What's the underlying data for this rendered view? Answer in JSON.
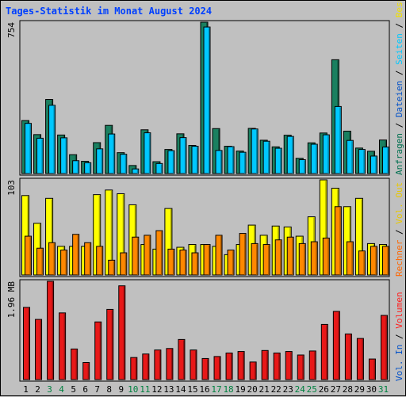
{
  "chart_data": {
    "type": "bar",
    "title": "Tages-Statistik im Monat August 2024",
    "categories": [
      "1",
      "2",
      "3",
      "4",
      "5",
      "6",
      "7",
      "8",
      "9",
      "10",
      "11",
      "12",
      "13",
      "14",
      "15",
      "16",
      "17",
      "18",
      "19",
      "20",
      "21",
      "22",
      "23",
      "24",
      "25",
      "26",
      "27",
      "28",
      "29",
      "30",
      "31"
    ],
    "weekend_days": [
      "3",
      "4",
      "10",
      "11",
      "17",
      "18",
      "24",
      "25",
      "31"
    ],
    "panels": [
      {
        "name": "requests",
        "max_label": "754",
        "ymax": 754,
        "right_labels": [
          {
            "text": "Anfragen",
            "color": "#007050"
          },
          {
            "text": " / ",
            "color": "#000000"
          },
          {
            "text": "Dateien",
            "color": "#0050c8"
          },
          {
            "text": " / ",
            "color": "#000000"
          },
          {
            "text": "Seiten",
            "color": "#00c8ff"
          },
          {
            "text": " / ",
            "color": "#000000"
          },
          {
            "text": "Besuche",
            "color": "#f0e000"
          }
        ],
        "series": [
          {
            "name": "Anfragen",
            "color": "#1a8060",
            "values": [
              264,
              194,
              369,
              192,
              94,
              61,
              154,
              240,
              104,
              40,
              218,
              59,
              120,
              198,
              140,
              754,
              224,
              136,
              112,
              225,
              166,
              133,
              191,
              76,
              153,
              202,
              567,
              211,
              127,
              111,
              167
            ]
          },
          {
            "name": "Dateien",
            "color": "#00c8ff",
            "values": [
              250,
              176,
              340,
              178,
              64,
              54,
              123,
              197,
              96,
              23,
              203,
              50,
              114,
              179,
              136,
              730,
              115,
              134,
              106,
              222,
              161,
              126,
              185,
              69,
              146,
              193,
              334,
              165,
              120,
              87,
              132
            ]
          }
        ]
      },
      {
        "name": "visits",
        "max_label": "103",
        "ymax": 103,
        "right_labels": [
          {
            "text": "Rechner",
            "color": "#ff6600"
          },
          {
            "text": " / ",
            "color": "#000000"
          },
          {
            "text": "Vol. Out",
            "color": "#e8c800"
          }
        ],
        "series": [
          {
            "name": "Besuche",
            "color": "#ffff00",
            "values": [
              86,
              56,
              83,
              31,
              31,
              31,
              87,
              92,
              88,
              76,
              33,
              28,
              72,
              30,
              33,
              33,
              31,
              22,
              33,
              54,
              43,
              53,
              52,
              42,
              63,
              103,
              94,
              74,
              83,
              34,
              33
            ]
          },
          {
            "name": "Rechner",
            "color": "#ff8800",
            "values": [
              42,
              29,
              35,
              27,
              44,
              35,
              31,
              16,
              24,
              41,
              43,
              48,
              28,
              27,
              24,
              33,
              43,
              27,
              45,
              34,
              33,
              38,
              41,
              34,
              36,
              40,
              74,
              36,
              26,
              31,
              31
            ]
          }
        ]
      },
      {
        "name": "volume",
        "max_label": "1.96 MB",
        "ymax": 1.96,
        "right_labels": [
          {
            "text": "Vol. In",
            "color": "#0050c8"
          },
          {
            "text": " / ",
            "color": "#000000"
          },
          {
            "text": "Volumen",
            "color": "#ff2020"
          }
        ],
        "series": [
          {
            "name": "Volumen",
            "color": "#e81818",
            "values": [
              1.44,
              1.2,
              1.96,
              1.33,
              0.61,
              0.34,
              1.15,
              1.4,
              1.87,
              0.44,
              0.51,
              0.59,
              0.62,
              0.8,
              0.59,
              0.42,
              0.46,
              0.53,
              0.56,
              0.35,
              0.58,
              0.53,
              0.56,
              0.49,
              0.57,
              1.1,
              1.36,
              0.91,
              0.82,
              0.41,
              1.28
            ]
          }
        ]
      }
    ]
  },
  "colors": {
    "panel_bg": "#c0c0c0",
    "frame": "#000000",
    "title": "#0040ff",
    "weekday": "#000000",
    "weekend": "#008040"
  }
}
